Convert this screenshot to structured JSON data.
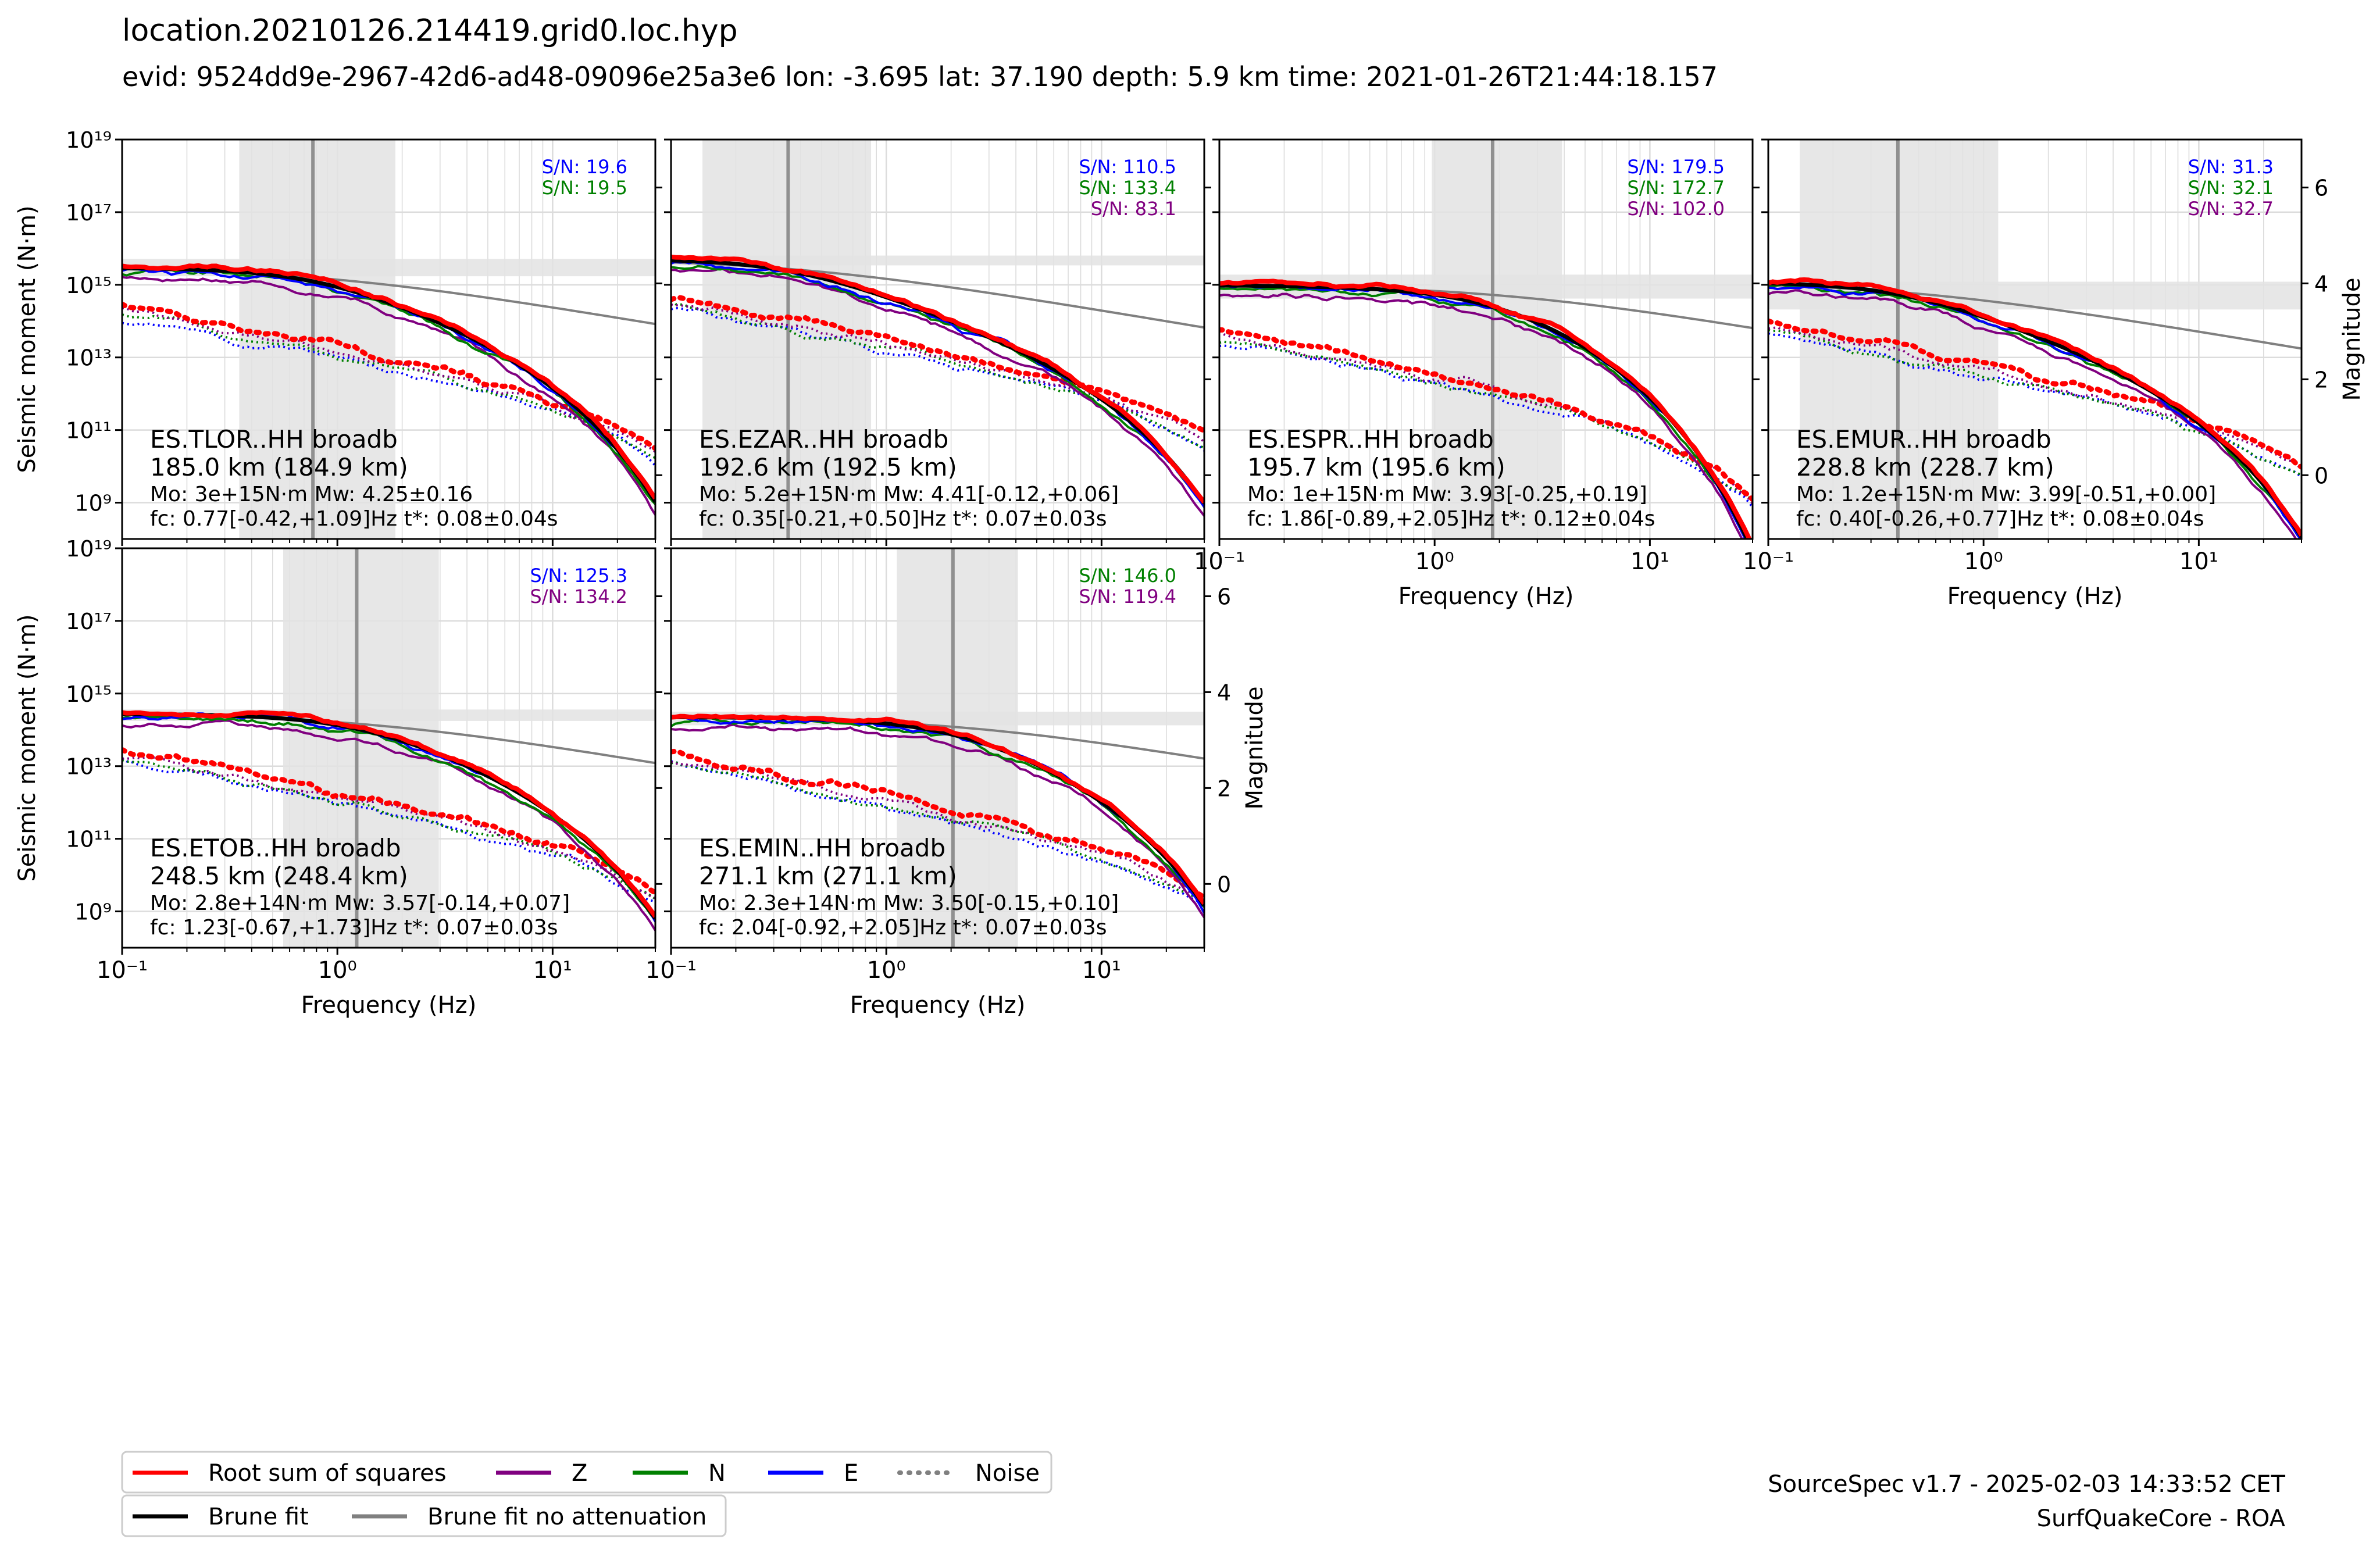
{
  "header": {
    "title": "location.20210126.214419.grid0.loc.hyp",
    "subtitle": "evid: 9524dd9e-2967-42d6-ad48-09096e25a3e6 lon: -3.695 lat: 37.190 depth: 5.9 km time: 2021-01-26T21:44:18.157"
  },
  "footer": {
    "line1": "SourceSpec v1.7 - 2025-02-03 14:33:52 CET",
    "line2": "SurfQuakeCore - ROA"
  },
  "colors": {
    "rss": "#ff0000",
    "Z": "#800080",
    "N": "#008000",
    "E": "#0000ff",
    "fit": "#000000",
    "fit_noatt": "#808080",
    "band": "#e3e3e3",
    "grid": "#dcdcdc"
  },
  "chart_data": {
    "type": "line",
    "xscale": "log",
    "yscale": "log",
    "xlabel": "Frequency (Hz)",
    "ylabel": "Seismic moment (N·m)",
    "y2label": "Magnitude",
    "xlim": [
      0.1,
      30
    ],
    "ylim": [
      100000000.0,
      1e+19
    ],
    "y2lim": [
      -1.33,
      7.0
    ],
    "xticks": [
      {
        "value": 0.1,
        "label": "10⁻¹"
      },
      {
        "value": 1,
        "label": "10⁰"
      },
      {
        "value": 10,
        "label": "10¹"
      }
    ],
    "yticks": [
      {
        "value": 1000000000.0,
        "label": "10⁹"
      },
      {
        "value": 100000000000.0,
        "label": "10¹¹"
      },
      {
        "value": 10000000000000.0,
        "label": "10¹³"
      },
      {
        "value": 1000000000000000.0,
        "label": "10¹⁵"
      },
      {
        "value": 1e+17,
        "label": "10¹⁷"
      },
      {
        "value": 1e+19,
        "label": "10¹⁹"
      }
    ],
    "y2ticks": [
      {
        "value": 0,
        "label": "0"
      },
      {
        "value": 2,
        "label": "2"
      },
      {
        "value": 4,
        "label": "4"
      },
      {
        "value": 6,
        "label": "6"
      }
    ],
    "grid": true,
    "legend_position": "bottom-left",
    "legend": [
      {
        "name": "Root sum of squares",
        "color": "#ff0000",
        "style": "solid"
      },
      {
        "name": "Z",
        "color": "#800080",
        "style": "solid"
      },
      {
        "name": "N",
        "color": "#008000",
        "style": "solid"
      },
      {
        "name": "E",
        "color": "#0000ff",
        "style": "solid"
      },
      {
        "name": "Noise",
        "color": "#808080",
        "style": "dotted"
      },
      {
        "name": "Brune fit",
        "color": "#000000",
        "style": "solid"
      },
      {
        "name": "Brune fit no attenuation",
        "color": "#808080",
        "style": "solid"
      }
    ],
    "stations": [
      {
        "station": "ES.TLOR..HH broadb",
        "distance": "185.0 km (184.9 km)",
        "params": "Mo: 3e+15N·m Mw: 4.25±0.16",
        "fc_text": "fc: 0.77[-0.42,+1.09]Hz t*: 0.08±0.04s",
        "Mo": 3000000000000000.0,
        "fc": 0.77,
        "fc_band": [
          0.35,
          1.86
        ],
        "mw_band": [
          4.09,
          4.41
        ],
        "tstar": 0.08,
        "noise_level": 200000000000000.0,
        "sn": [
          {
            "label": "S/N: 19.6",
            "comp": "E"
          },
          {
            "label": "S/N: 19.5",
            "comp": "N"
          }
        ],
        "show_xaxis": false,
        "show_ylabel": true,
        "show_y2": false
      },
      {
        "station": "ES.EZAR..HH broadb",
        "distance": "192.6 km (192.5 km)",
        "params": "Mo: 5.2e+15N·m Mw: 4.41[-0.12,+0.06]",
        "fc_text": "fc: 0.35[-0.21,+0.50]Hz t*: 0.07±0.03s",
        "Mo": 5200000000000000.0,
        "fc": 0.35,
        "fc_band": [
          0.14,
          0.85
        ],
        "mw_band": [
          4.29,
          4.47
        ],
        "tstar": 0.07,
        "noise_level": 320000000000000.0,
        "sn": [
          {
            "label": "S/N: 110.5",
            "comp": "E"
          },
          {
            "label": "S/N: 133.4",
            "comp": "N"
          },
          {
            "label": "S/N: 83.1",
            "comp": "Z"
          }
        ],
        "show_xaxis": false,
        "show_ylabel": false,
        "show_y2": false
      },
      {
        "station": "ES.ESPR..HH broadb",
        "distance": "195.7 km (195.6 km)",
        "params": "Mo: 1e+15N·m Mw: 3.93[-0.25,+0.19]",
        "fc_text": "fc: 1.86[-0.89,+2.05]Hz t*: 0.12±0.04s",
        "Mo": 1000000000000000.0,
        "fc": 1.86,
        "fc_band": [
          0.97,
          3.91
        ],
        "mw_band": [
          3.68,
          4.12
        ],
        "tstar": 0.12,
        "noise_level": 40000000000000.0,
        "sn": [
          {
            "label": "S/N: 179.5",
            "comp": "E"
          },
          {
            "label": "S/N: 172.7",
            "comp": "N"
          },
          {
            "label": "S/N: 102.0",
            "comp": "Z"
          }
        ],
        "show_xaxis": true,
        "show_ylabel": false,
        "show_y2": false
      },
      {
        "station": "ES.EMUR..HH broadb",
        "distance": "228.8 km (228.7 km)",
        "params": "Mo: 1.2e+15N·m Mw: 3.99[-0.51,+0.00]",
        "fc_text": "fc: 0.40[-0.26,+0.77]Hz t*: 0.08±0.04s",
        "Mo": 1200000000000000.0,
        "fc": 0.4,
        "fc_band": [
          0.14,
          1.17
        ],
        "mw_band": [
          3.48,
          3.99
        ],
        "tstar": 0.08,
        "noise_level": 60000000000000.0,
        "sn": [
          {
            "label": "S/N: 31.3",
            "comp": "E"
          },
          {
            "label": "S/N: 32.1",
            "comp": "N"
          },
          {
            "label": "S/N: 32.7",
            "comp": "Z"
          }
        ],
        "show_xaxis": true,
        "show_ylabel": false,
        "show_y2": true
      },
      {
        "station": "ES.ETOB..HH broadb",
        "distance": "248.5 km (248.4 km)",
        "params": "Mo: 2.8e+14N·m Mw: 3.57[-0.14,+0.07]",
        "fc_text": "fc: 1.23[-0.67,+1.73]Hz t*: 0.07±0.03s",
        "Mo": 280000000000000.0,
        "fc": 1.23,
        "fc_band": [
          0.56,
          2.96
        ],
        "mw_band": [
          3.43,
          3.64
        ],
        "tstar": 0.07,
        "noise_level": 20000000000000.0,
        "sn": [
          {
            "label": "S/N: 125.3",
            "comp": "E"
          },
          {
            "label": "S/N: 134.2",
            "comp": "Z"
          }
        ],
        "show_xaxis": true,
        "show_ylabel": true,
        "show_y2": false
      },
      {
        "station": "ES.EMIN..HH broadb",
        "distance": "271.1 km (271.1 km)",
        "params": "Mo: 2.3e+14N·m Mw: 3.50[-0.15,+0.10]",
        "fc_text": "fc: 2.04[-0.92,+2.05]Hz t*: 0.07±0.03s",
        "Mo": 230000000000000.0,
        "fc": 2.04,
        "fc_band": [
          1.12,
          4.09
        ],
        "mw_band": [
          3.35,
          3.6
        ],
        "tstar": 0.07,
        "noise_level": 15000000000000.0,
        "sn": [
          {
            "label": "S/N: 146.0",
            "comp": "N"
          },
          {
            "label": "S/N: 119.4",
            "comp": "Z"
          }
        ],
        "show_xaxis": true,
        "show_ylabel": false,
        "show_y2": true
      }
    ]
  }
}
